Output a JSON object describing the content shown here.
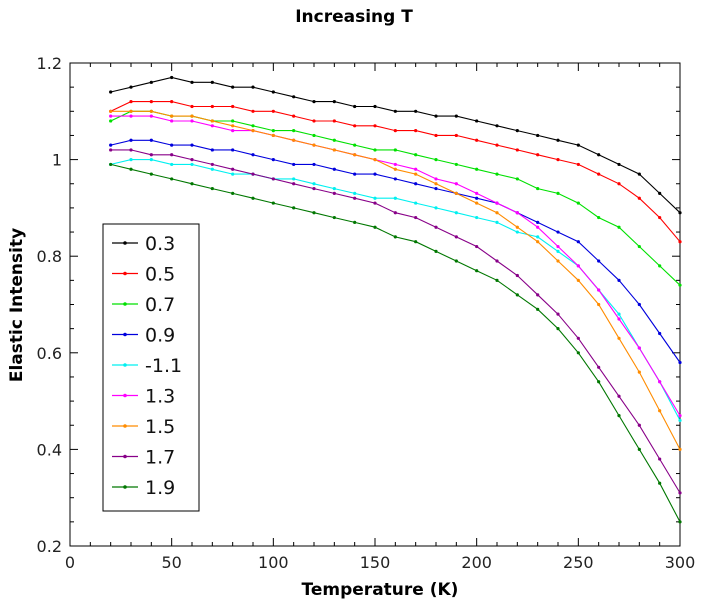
{
  "chart_data": {
    "type": "line",
    "title": "Increasing T",
    "xlabel": "Temperature (K)",
    "ylabel": "Elastic Intensity",
    "xlim": [
      0,
      300
    ],
    "ylim": [
      0.2,
      1.2
    ],
    "x_ticks": [
      0,
      50,
      100,
      150,
      200,
      250,
      300
    ],
    "y_ticks": [
      0.2,
      0.4,
      0.6,
      0.8,
      1.0,
      1.2
    ],
    "x_tick_labels": [
      "0",
      "50",
      "100",
      "150",
      "200",
      "250",
      "300"
    ],
    "y_tick_labels": [
      "0.2",
      "0.4",
      "0.6",
      "0.8",
      "1",
      "1.2"
    ],
    "grid": false,
    "legend_position": "left",
    "x": [
      20,
      30,
      40,
      50,
      60,
      70,
      80,
      90,
      100,
      110,
      120,
      130,
      140,
      150,
      160,
      170,
      180,
      190,
      200,
      210,
      220,
      230,
      240,
      250,
      260,
      270,
      280,
      290,
      300
    ],
    "series": [
      {
        "name": "0.3",
        "color": "#000000",
        "values": [
          1.14,
          1.15,
          1.16,
          1.17,
          1.16,
          1.16,
          1.15,
          1.15,
          1.14,
          1.13,
          1.12,
          1.12,
          1.11,
          1.11,
          1.1,
          1.1,
          1.09,
          1.09,
          1.08,
          1.07,
          1.06,
          1.05,
          1.04,
          1.03,
          1.01,
          0.99,
          0.97,
          0.93,
          0.89
        ]
      },
      {
        "name": "0.5",
        "color": "#ff0000",
        "values": [
          1.1,
          1.12,
          1.12,
          1.12,
          1.11,
          1.11,
          1.11,
          1.1,
          1.1,
          1.09,
          1.08,
          1.08,
          1.07,
          1.07,
          1.06,
          1.06,
          1.05,
          1.05,
          1.04,
          1.03,
          1.02,
          1.01,
          1.0,
          0.99,
          0.97,
          0.95,
          0.92,
          0.88,
          0.83
        ]
      },
      {
        "name": "0.7",
        "color": "#00e000",
        "values": [
          1.08,
          1.1,
          1.1,
          1.09,
          1.09,
          1.08,
          1.08,
          1.07,
          1.06,
          1.06,
          1.05,
          1.04,
          1.03,
          1.02,
          1.02,
          1.01,
          1.0,
          0.99,
          0.98,
          0.97,
          0.96,
          0.94,
          0.93,
          0.91,
          0.88,
          0.86,
          0.82,
          0.78,
          0.74
        ]
      },
      {
        "name": "0.9",
        "color": "#0000dd",
        "values": [
          1.03,
          1.04,
          1.04,
          1.03,
          1.03,
          1.02,
          1.02,
          1.01,
          1.0,
          0.99,
          0.99,
          0.98,
          0.97,
          0.97,
          0.96,
          0.95,
          0.94,
          0.93,
          0.92,
          0.91,
          0.89,
          0.87,
          0.85,
          0.83,
          0.79,
          0.75,
          0.7,
          0.64,
          0.58
        ]
      },
      {
        "name": "-1.1",
        "color": "#00f0f0",
        "values": [
          0.99,
          1.0,
          1.0,
          0.99,
          0.99,
          0.98,
          0.97,
          0.97,
          0.96,
          0.96,
          0.95,
          0.94,
          0.93,
          0.92,
          0.92,
          0.91,
          0.9,
          0.89,
          0.88,
          0.87,
          0.85,
          0.84,
          0.81,
          0.78,
          0.73,
          0.68,
          0.61,
          0.54,
          0.46
        ]
      },
      {
        "name": "1.3",
        "color": "#ff00ff",
        "values": [
          1.09,
          1.09,
          1.09,
          1.08,
          1.08,
          1.07,
          1.06,
          1.06,
          1.05,
          1.04,
          1.03,
          1.02,
          1.01,
          1.0,
          0.99,
          0.98,
          0.96,
          0.95,
          0.93,
          0.91,
          0.89,
          0.86,
          0.82,
          0.78,
          0.73,
          0.67,
          0.61,
          0.54,
          0.47
        ]
      },
      {
        "name": "1.5",
        "color": "#ff8c00",
        "values": [
          1.1,
          1.1,
          1.1,
          1.09,
          1.09,
          1.08,
          1.07,
          1.06,
          1.05,
          1.04,
          1.03,
          1.02,
          1.01,
          1.0,
          0.98,
          0.97,
          0.95,
          0.93,
          0.91,
          0.89,
          0.86,
          0.83,
          0.79,
          0.75,
          0.7,
          0.63,
          0.56,
          0.48,
          0.4
        ]
      },
      {
        "name": "1.7",
        "color": "#880088",
        "values": [
          1.02,
          1.02,
          1.01,
          1.01,
          1.0,
          0.99,
          0.98,
          0.97,
          0.96,
          0.95,
          0.94,
          0.93,
          0.92,
          0.91,
          0.89,
          0.88,
          0.86,
          0.84,
          0.82,
          0.79,
          0.76,
          0.72,
          0.68,
          0.63,
          0.57,
          0.51,
          0.45,
          0.38,
          0.31
        ]
      },
      {
        "name": "1.9",
        "color": "#007700",
        "values": [
          0.99,
          0.98,
          0.97,
          0.96,
          0.95,
          0.94,
          0.93,
          0.92,
          0.91,
          0.9,
          0.89,
          0.88,
          0.87,
          0.86,
          0.84,
          0.83,
          0.81,
          0.79,
          0.77,
          0.75,
          0.72,
          0.69,
          0.65,
          0.6,
          0.54,
          0.47,
          0.4,
          0.33,
          0.25
        ]
      }
    ]
  }
}
